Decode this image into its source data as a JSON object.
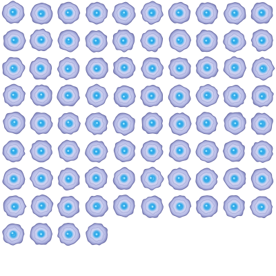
{
  "sprite_sheet": {
    "columns": 10,
    "frame_count": 84,
    "background_color": "#ffffff",
    "blob_outer_color": "#8a8fc4",
    "blob_body_color": "#b9bde6",
    "blob_inner_color": "#cfd4f2",
    "core_color": "#2aa7e8",
    "core_highlight_color": "#9fe8ff",
    "edge_color": "#6d6fa8"
  }
}
